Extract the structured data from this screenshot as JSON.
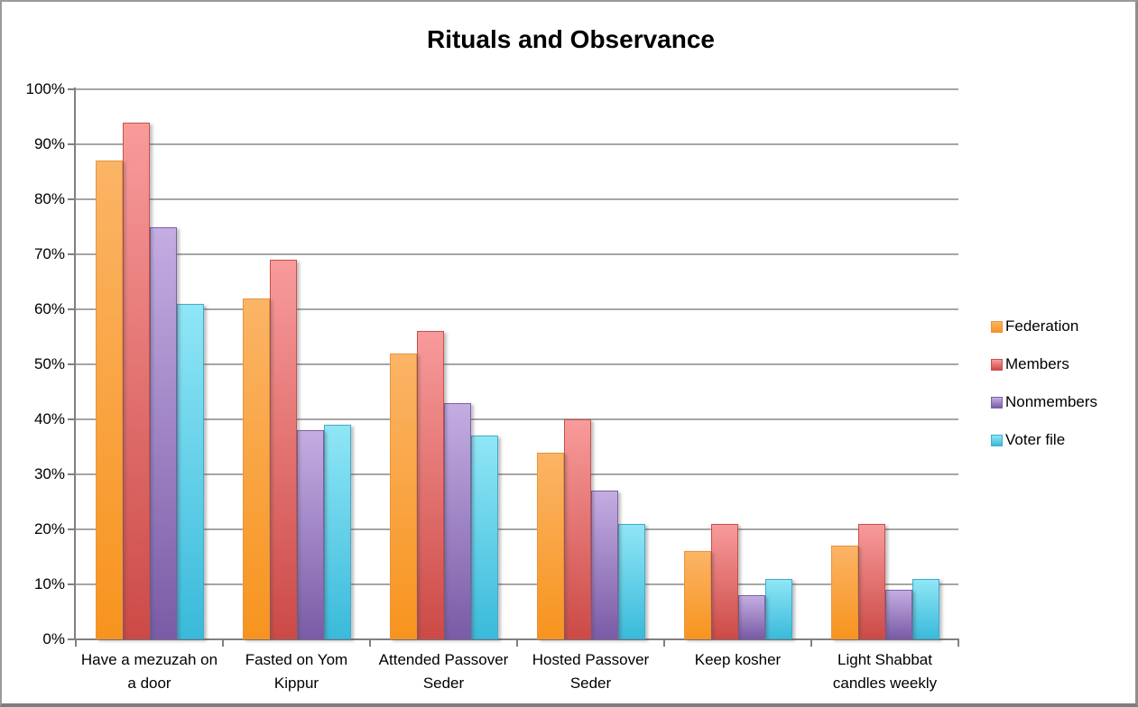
{
  "chart_data": {
    "type": "bar",
    "title": "Rituals and Observance",
    "categories": [
      "Have a mezuzah on a door",
      "Fasted on Yom Kippur",
      "Attended Passover Seder",
      "Hosted Passover Seder",
      "Keep kosher",
      "Light Shabbat candles weekly"
    ],
    "category_lines": [
      [
        "Have a mezuzah on",
        "a door"
      ],
      [
        "Fasted on Yom",
        "Kippur"
      ],
      [
        "Attended Passover",
        "Seder"
      ],
      [
        "Hosted Passover",
        "Seder"
      ],
      [
        "Keep kosher"
      ],
      [
        "Light Shabbat",
        "candles weekly"
      ]
    ],
    "series": [
      {
        "name": "Federation",
        "values": [
          87,
          62,
          52,
          34,
          16,
          17
        ],
        "color_top": "#FBB466",
        "color_bottom": "#F7941E",
        "border_color": "#E8953F"
      },
      {
        "name": "Members",
        "values": [
          94,
          69,
          56,
          40,
          21,
          21
        ],
        "color_top": "#F89B9B",
        "color_bottom": "#CC4A46",
        "border_color": "#C6504C"
      },
      {
        "name": "Nonmembers",
        "values": [
          75,
          38,
          43,
          27,
          8,
          9
        ],
        "color_top": "#C4ADE2",
        "color_bottom": "#7A5BA6",
        "border_color": "#7D5FA9"
      },
      {
        "name": "Voter file",
        "values": [
          61,
          39,
          37,
          21,
          11,
          11
        ],
        "color_top": "#8FE6F6",
        "color_bottom": "#3ABADB",
        "border_color": "#44A9C8"
      }
    ],
    "ylim": [
      0,
      100
    ],
    "ytick_step": 10,
    "ytick_labels": [
      "0%",
      "10%",
      "20%",
      "30%",
      "40%",
      "50%",
      "60%",
      "70%",
      "80%",
      "90%",
      "100%"
    ],
    "grid": true,
    "legend_position": "right",
    "axis_color": "#808080",
    "grid_color": "#A6A6A6",
    "text_color": "#000000"
  }
}
